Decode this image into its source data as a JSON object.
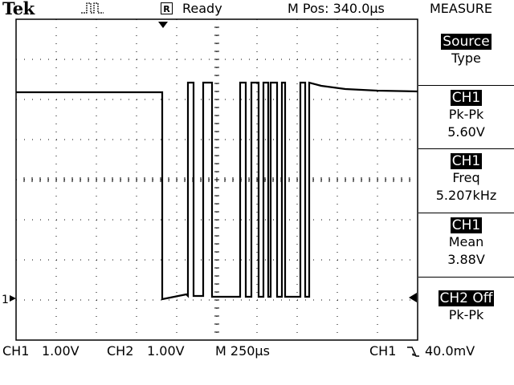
{
  "header": {
    "brand": "Tek",
    "trigger_icon": "pulse-icon",
    "status_icon": "R",
    "status": "Ready",
    "position": "M Pos: 340.0µs",
    "menu_title": "MEASURE"
  },
  "ground_marker": "1",
  "side_menu": [
    {
      "highlight": "Source",
      "line1": "Type",
      "line2": ""
    },
    {
      "highlight": "CH1",
      "line1": "Pk-Pk",
      "line2": "5.60V"
    },
    {
      "highlight": "CH1",
      "line1": "Freq",
      "line2": "5.207kHz"
    },
    {
      "highlight": "CH1",
      "line1": "Mean",
      "line2": "3.88V"
    },
    {
      "highlight": "CH2 Off",
      "line1": "Pk-Pk",
      "line2": ""
    }
  ],
  "footer": {
    "ch1_label": "CH1",
    "ch1_scale": "1.00V",
    "ch2_label": "CH2",
    "ch2_scale": "1.00V",
    "timebase": "M 250µs",
    "trigger_source": "CH1",
    "trigger_level": "40.0mV"
  },
  "colors": {
    "background": "#ffffff",
    "trace": "#000000",
    "text": "#000000"
  }
}
